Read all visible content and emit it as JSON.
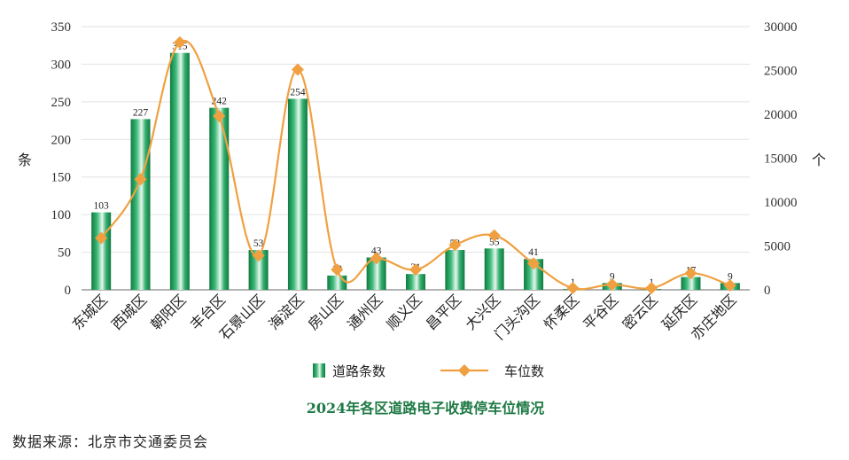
{
  "chart_data": {
    "type": "bar+line",
    "title": "2024年各区道路电子收费停车位情况",
    "categories": [
      "东城区",
      "西城区",
      "朝阳区",
      "丰台区",
      "石景山区",
      "海淀区",
      "房山区",
      "通州区",
      "顺义区",
      "昌平区",
      "大兴区",
      "门头沟区",
      "怀柔区",
      "平谷区",
      "密云区",
      "延庆区",
      "亦庄地区"
    ],
    "series": [
      {
        "name": "道路条数",
        "type": "bar",
        "axis": "left",
        "values": [
          103,
          227,
          315,
          242,
          53,
          254,
          19,
          43,
          21,
          53,
          55,
          41,
          1,
          9,
          1,
          17,
          9
        ],
        "color": "#1e9a5a"
      },
      {
        "name": "车位数",
        "type": "line",
        "axis": "right",
        "values": [
          5900,
          12600,
          28200,
          19800,
          3900,
          25100,
          2300,
          3600,
          2300,
          5100,
          6200,
          3000,
          200,
          600,
          200,
          1900,
          500
        ],
        "color": "#f0a040"
      }
    ],
    "ylabel_left": "条",
    "ylabel_right": "个",
    "ylim_left": [
      0,
      350
    ],
    "yticks_left": [
      0,
      50,
      100,
      150,
      200,
      250,
      300,
      350
    ],
    "ylim_right": [
      0,
      30000
    ],
    "yticks_right": [
      0,
      5000,
      10000,
      15000,
      20000,
      25000,
      30000
    ],
    "grid": true,
    "legend": "bottom-center"
  },
  "source": "数据来源：北京市交通委员会"
}
